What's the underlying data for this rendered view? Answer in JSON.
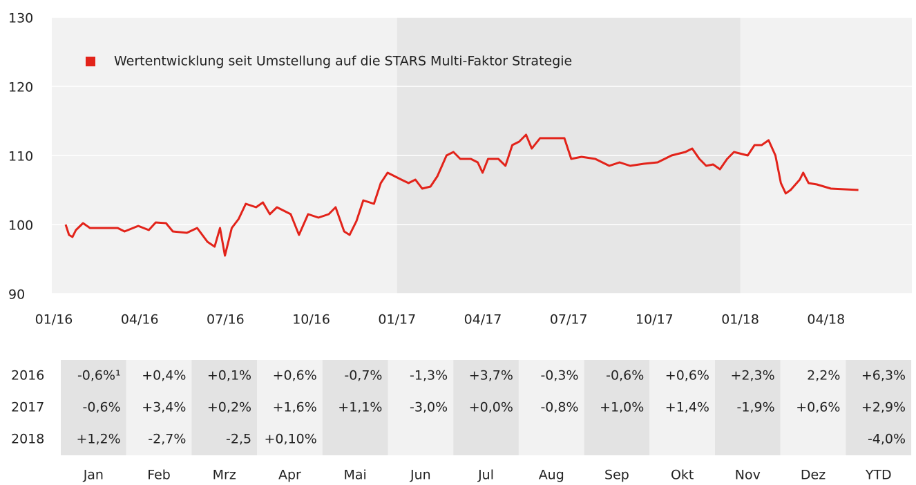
{
  "chart_data": {
    "type": "line",
    "x": [
      0.41,
      0.53,
      0.65,
      0.77,
      1.02,
      1.26,
      1.74,
      2.23,
      2.47,
      2.95,
      3.32,
      3.56,
      3.92,
      4.16,
      4.65,
      5.01,
      5.37,
      5.62,
      5.81,
      5.98,
      6.22,
      6.46,
      6.71,
      7.07,
      7.31,
      7.55,
      7.8,
      8.28,
      8.57,
      8.89,
      9.25,
      9.61,
      9.85,
      10.15,
      10.34,
      10.58,
      10.82,
      11.19,
      11.43,
      11.67,
      11.91,
      12.15,
      12.4,
      12.64,
      12.88,
      13.17,
      13.41,
      13.73,
      13.97,
      14.21,
      14.58,
      14.82,
      14.99,
      15.18,
      15.54,
      15.79,
      16.03,
      16.27,
      16.51,
      16.71,
      17.0,
      17.48,
      17.85,
      18.09,
      18.45,
      18.93,
      19.42,
      19.78,
      20.15,
      20.63,
      21.11,
      21.6,
      22.08,
      22.32,
      22.57,
      22.81,
      23.05,
      23.29,
      23.54,
      23.78,
      24.26,
      24.5,
      24.75,
      24.99,
      25.23,
      25.42,
      25.59,
      25.76,
      26.08,
      26.2,
      26.39,
      26.68,
      27.17,
      27.65,
      28.13
    ],
    "series": [
      {
        "name": "Wertentwicklung seit Umstellung auf die STARS Multi-Faktor Strategie",
        "color": "#e2231a",
        "values": [
          100,
          98.5,
          98.2,
          99.2,
          100.2,
          99.5,
          99.5,
          99.5,
          99.0,
          99.8,
          99.2,
          100.3,
          100.2,
          99,
          98.8,
          99.5,
          97.5,
          96.8,
          99.5,
          95.5,
          99.5,
          100.8,
          103,
          102.5,
          103.2,
          101.5,
          102.5,
          101.5,
          98.5,
          101.5,
          101.0,
          101.5,
          102.5,
          99,
          98.5,
          100.5,
          103.5,
          103,
          106,
          107.5,
          107,
          106.5,
          106,
          106.5,
          105.2,
          105.5,
          107,
          110,
          110.5,
          109.5,
          109.5,
          109,
          107.5,
          109.5,
          109.5,
          108.5,
          111.5,
          112,
          113,
          111,
          112.5,
          112.5,
          112.5,
          109.5,
          109.8,
          109.5,
          108.5,
          109,
          108.5,
          108.8,
          109.0,
          110,
          110.5,
          111,
          109.5,
          108.5,
          108.7,
          108,
          109.5,
          110.5,
          110,
          111.5,
          111.5,
          112.2,
          110,
          106,
          104.5,
          105,
          106.5,
          107.5,
          106,
          105.8,
          105.2,
          105.1,
          105
        ]
      }
    ],
    "xlim": [
      0,
      30
    ],
    "xticks": [
      {
        "value": 0,
        "label": "01/16"
      },
      {
        "value": 3,
        "label": "04/16"
      },
      {
        "value": 6,
        "label": "07/16"
      },
      {
        "value": 9,
        "label": "10/16"
      },
      {
        "value": 12,
        "label": "01/17"
      },
      {
        "value": 15,
        "label": "04/17"
      },
      {
        "value": 18,
        "label": "07/17"
      },
      {
        "value": 21,
        "label": "10/17"
      },
      {
        "value": 24,
        "label": "01/18"
      },
      {
        "value": 27,
        "label": "04/18"
      }
    ],
    "ylim": [
      90,
      130
    ],
    "yticks": [
      90,
      100,
      110,
      120,
      130
    ],
    "grid": true,
    "highlight_xrange": [
      12,
      24
    ],
    "legend": "upper left"
  },
  "table": {
    "columns": [
      "Jan",
      "Feb",
      "Mrz",
      "Apr",
      "Mai",
      "Jun",
      "Jul",
      "Aug",
      "Sep",
      "Okt",
      "Nov",
      "Dez",
      "YTD"
    ],
    "rows": [
      {
        "label": "2016",
        "cells": [
          "-0,6%¹",
          "+0,4%",
          "+0,1%",
          "+0,6%",
          "-0,7%",
          "-1,3%",
          "+3,7%",
          "-0,3%",
          "-0,6%",
          "+0,6%",
          "+2,3%",
          "2,2%",
          "+6,3%"
        ]
      },
      {
        "label": "2017",
        "cells": [
          "-0,6%",
          "+3,4%",
          "+0,2%",
          "+1,6%",
          "+1,1%",
          "-3,0%",
          "+0,0%",
          "-0,8%",
          "+1,0%",
          "+1,4%",
          "-1,9%",
          "+0,6%",
          "+2,9%"
        ]
      },
      {
        "label": "2018",
        "cells": [
          "+1,2%",
          "-2,7%",
          "-2,5",
          "+0,10%",
          null,
          null,
          null,
          null,
          null,
          null,
          null,
          null,
          "-4,0%"
        ]
      }
    ]
  }
}
